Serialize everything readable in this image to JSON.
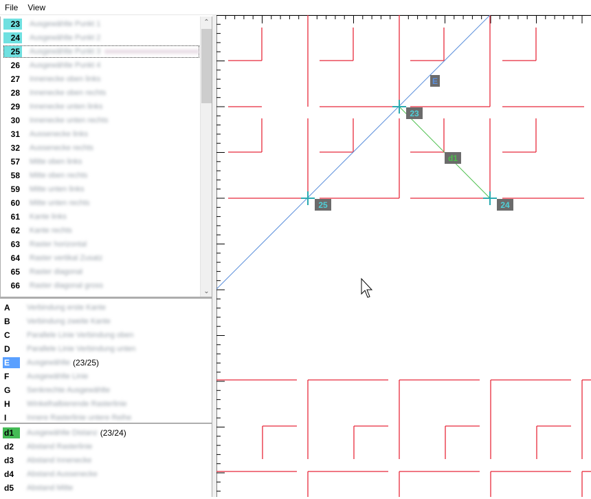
{
  "menu": [
    "File",
    "View"
  ],
  "points": [
    {
      "num": "23",
      "label": "Ausgewählte Punkt 1",
      "highlight": true
    },
    {
      "num": "24",
      "label": "Ausgewählte Punkt 2",
      "highlight": true
    },
    {
      "num": "25",
      "label": "Ausgewählte Punkt 3",
      "highlight": true,
      "selected": true
    },
    {
      "num": "26",
      "label": "Ausgewählte Punkt 4"
    },
    {
      "num": "27",
      "label": "Innenecke oben links"
    },
    {
      "num": "28",
      "label": "Innenecke oben rechts"
    },
    {
      "num": "29",
      "label": "Innenecke unten links"
    },
    {
      "num": "30",
      "label": "Innenecke unten rechts"
    },
    {
      "num": "31",
      "label": "Aussenecke links"
    },
    {
      "num": "32",
      "label": "Aussenecke rechts"
    },
    {
      "num": "57",
      "label": "Mitte oben links"
    },
    {
      "num": "58",
      "label": "Mitte oben rechts"
    },
    {
      "num": "59",
      "label": "Mitte unten links"
    },
    {
      "num": "60",
      "label": "Mitte unten rechts"
    },
    {
      "num": "61",
      "label": "Kante links"
    },
    {
      "num": "62",
      "label": "Kante rechts"
    },
    {
      "num": "63",
      "label": "Raster horizontal"
    },
    {
      "num": "64",
      "label": "Raster vertikal Zusatz"
    },
    {
      "num": "65",
      "label": "Raster diagonal"
    },
    {
      "num": "66",
      "label": "Raster diagonal gross"
    }
  ],
  "lines": [
    {
      "tag": "A",
      "desc": "Verbindung erste Kante"
    },
    {
      "tag": "B",
      "desc": "Verbindung zweite Kante"
    },
    {
      "tag": "C",
      "desc": "Parallele Linie Verbindung oben"
    },
    {
      "tag": "D",
      "desc": "Parallele Linie Verbindung unten"
    },
    {
      "tag": "E",
      "desc": "Ausgewählte",
      "extra": "(23/25)",
      "highlight": "blue"
    },
    {
      "tag": "F",
      "desc": "Ausgewählte Linie"
    },
    {
      "tag": "G",
      "desc": "Senkrechte Ausgewählte"
    },
    {
      "tag": "H",
      "desc": "Winkelhalbierende Rasterlinie"
    },
    {
      "tag": "I",
      "desc": "Innere Rasterlinie untere Reihe"
    }
  ],
  "distances": [
    {
      "tag": "d1",
      "desc": "Ausgewählte Distanz",
      "extra": "(23/24)",
      "highlight": "green"
    },
    {
      "tag": "d2",
      "desc": "Abstand Rasterlinie"
    },
    {
      "tag": "d3",
      "desc": "Abstand Innenecke"
    },
    {
      "tag": "d4",
      "desc": "Abstand Aussenecke"
    },
    {
      "tag": "d5",
      "desc": "Abstand Mitte"
    }
  ],
  "canvas": {
    "markers": [
      {
        "id": "23",
        "label": "23"
      },
      {
        "id": "24",
        "label": "24"
      },
      {
        "id": "25",
        "label": "25"
      }
    ],
    "line_label": "E",
    "distance_label": "d1",
    "colors": {
      "grid_lines": "#e8283a",
      "line_e": "#5b8fdc",
      "distance_d1": "#4bbf4b",
      "marker": "#2aaab0",
      "label_bg": "#6b6b6b",
      "label_text": "#4fd0d8"
    }
  },
  "scrollbar": {
    "up": "⌃",
    "down": "⌄"
  }
}
